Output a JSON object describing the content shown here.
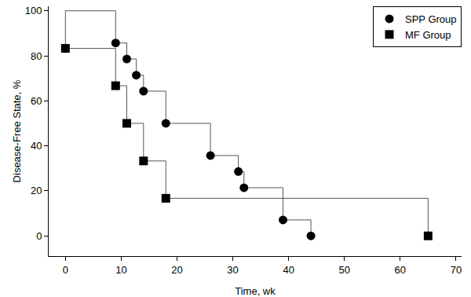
{
  "chart_data": {
    "type": "line",
    "line_style": "step",
    "x_label": "Time, wk",
    "y_label": "Disease-Free State, %",
    "xlim": [
      -3,
      71
    ],
    "xticks": [
      0,
      10,
      20,
      30,
      40,
      50,
      60,
      70
    ],
    "ylim": [
      -9,
      102
    ],
    "yticks": [
      0,
      20,
      40,
      60,
      80,
      100
    ],
    "grid": false,
    "legend": "upper right",
    "series": [
      {
        "name": "SPP Group",
        "color": "#000000",
        "marker": "circle",
        "x": [
          0,
          9,
          11,
          12.7,
          14,
          18,
          26,
          31,
          32,
          39,
          44
        ],
        "values": [
          100,
          85.7,
          78.6,
          71.4,
          64.3,
          50,
          35.7,
          28.6,
          21.4,
          7.1,
          0
        ]
      },
      {
        "name": "MF Group",
        "color": "#000000",
        "marker": "square",
        "x": [
          0,
          0,
          9,
          11,
          14,
          18,
          65
        ],
        "values": [
          100,
          83.3,
          66.7,
          50,
          33.3,
          16.7,
          0
        ]
      }
    ]
  }
}
